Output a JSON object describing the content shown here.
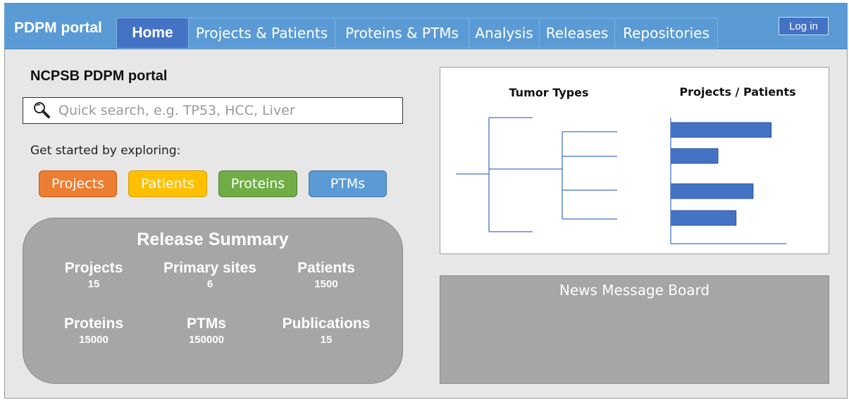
{
  "header": {
    "brand": "PDPM portal",
    "nav": [
      {
        "label": "Home",
        "active": true
      },
      {
        "label": "Projects & Patients"
      },
      {
        "label": "Proteins & PTMs"
      },
      {
        "label": "Analysis"
      },
      {
        "label": "Releases"
      },
      {
        "label": "Repositories"
      }
    ],
    "login_label": "Log in"
  },
  "main": {
    "title": "NCPSB PDPM portal",
    "search": {
      "placeholder": "Quick search, e.g. TP53, HCC, Liver",
      "value": ""
    },
    "explore_label": "Get started by exploring:",
    "categories": [
      {
        "label": "Projects",
        "color": "#ed7d31"
      },
      {
        "label": "Patients",
        "color": "#ffc000"
      },
      {
        "label": "Proteins",
        "color": "#70ad47"
      },
      {
        "label": "PTMs",
        "color": "#5b9bd5"
      }
    ]
  },
  "release_summary": {
    "title": "Release Summary",
    "stats": [
      {
        "label": "Projects",
        "value": "15"
      },
      {
        "label": "Primary sites",
        "value": "6"
      },
      {
        "label": "Patients",
        "value": "1500"
      },
      {
        "label": "Proteins",
        "value": "15000"
      },
      {
        "label": "PTMs",
        "value": "150000"
      },
      {
        "label": "Publications",
        "value": "15"
      }
    ]
  },
  "charts": {
    "tumor_types_title": "Tumor Types",
    "projects_patients_title": "Projects / Patients",
    "accent_color": "#4472c4"
  },
  "chart_data": {
    "type": "bar",
    "title": "Projects / Patients",
    "orientation": "horizontal",
    "values": [
      100,
      47,
      82,
      65
    ],
    "xlim": [
      0,
      115
    ]
  },
  "news": {
    "title": "News Message Board"
  }
}
